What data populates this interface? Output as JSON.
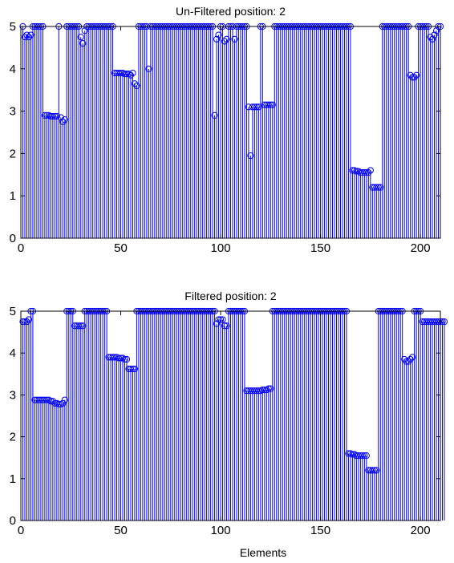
{
  "figure": {
    "xlabel": "Elements",
    "stem_color": "#0000ff",
    "axes_color": "#000000"
  },
  "chart_data": [
    {
      "type": "stem",
      "title": "Un-Filtered position: 2",
      "xlabel": "",
      "ylabel": "",
      "xlim": [
        0,
        210
      ],
      "ylim": [
        0,
        5
      ],
      "xticks": [
        0,
        50,
        100,
        150,
        200
      ],
      "yticks": [
        0,
        1,
        2,
        3,
        4,
        5
      ],
      "grid": false,
      "values": [
        5,
        4.75,
        4.8,
        4.75,
        4.8,
        5,
        5,
        5,
        5,
        5,
        5,
        2.9,
        2.9,
        2.9,
        2.88,
        2.88,
        2.88,
        2.88,
        5,
        2.85,
        2.75,
        2.8,
        5,
        5,
        5,
        5,
        5,
        5,
        5,
        4.75,
        4.6,
        4.9,
        5,
        5,
        5,
        5,
        5,
        5,
        5,
        5,
        5,
        5,
        5,
        5,
        5,
        5,
        3.9,
        3.9,
        3.9,
        3.9,
        3.9,
        3.88,
        3.88,
        3.88,
        3.85,
        3.9,
        3.65,
        3.6,
        5,
        5,
        5,
        5,
        5,
        4,
        5,
        5,
        5,
        5,
        5,
        5,
        5,
        5,
        5,
        5,
        5,
        5,
        5,
        5,
        5,
        5,
        5,
        5,
        5,
        5,
        5,
        5,
        5,
        5,
        5,
        5,
        5,
        5,
        5,
        5,
        5,
        5,
        2.9,
        4.7,
        4.8,
        5,
        5,
        4.65,
        4.7,
        5,
        5,
        5,
        4.7,
        5,
        5,
        5,
        5,
        5,
        5,
        3.1,
        1.95,
        3.1,
        3.1,
        3.1,
        3.1,
        5,
        5,
        3.15,
        3.15,
        3.15,
        3.15,
        3.15,
        5,
        5,
        5,
        5,
        5,
        5,
        5,
        5,
        5,
        5,
        5,
        5,
        5,
        5,
        5,
        5,
        5,
        5,
        5,
        5,
        5,
        5,
        5,
        5,
        5,
        5,
        5,
        5,
        5,
        5,
        5,
        5,
        5,
        5,
        5,
        5,
        5,
        5,
        5,
        1.6,
        1.6,
        1.58,
        1.58,
        1.55,
        1.55,
        1.55,
        1.55,
        1.55,
        1.6,
        1.2,
        1.2,
        1.2,
        1.2,
        1.2,
        5,
        5,
        5,
        5,
        5,
        5,
        5,
        5,
        5,
        5,
        5,
        5,
        5,
        5,
        3.85,
        3.8,
        3.8,
        3.85,
        5,
        5,
        5,
        5,
        5,
        5,
        4.75,
        4.7,
        4.8,
        4.9,
        5,
        5
      ]
    },
    {
      "type": "stem",
      "title": "Filtered position: 2",
      "xlabel": "Elements",
      "ylabel": "",
      "xlim": [
        0,
        210
      ],
      "ylim": [
        0,
        5
      ],
      "xticks": [
        0,
        50,
        100,
        150,
        200
      ],
      "yticks": [
        0,
        1,
        2,
        3,
        4,
        5
      ],
      "grid": false,
      "values": [
        4.75,
        4.75,
        4.75,
        4.8,
        5,
        5,
        2.88,
        2.88,
        2.88,
        2.88,
        2.88,
        2.88,
        2.88,
        2.88,
        2.85,
        2.85,
        2.8,
        2.8,
        2.78,
        2.78,
        2.8,
        2.88,
        5,
        5,
        5,
        5,
        4.65,
        4.65,
        4.65,
        4.65,
        4.65,
        5,
        5,
        5,
        5,
        5,
        5,
        5,
        5,
        5,
        5,
        5,
        5,
        3.9,
        3.9,
        3.9,
        3.9,
        3.9,
        3.88,
        3.88,
        3.88,
        3.85,
        3.85,
        3.62,
        3.62,
        3.62,
        3.62,
        5,
        5,
        5,
        5,
        5,
        5,
        5,
        5,
        5,
        5,
        5,
        5,
        5,
        5,
        5,
        5,
        5,
        5,
        5,
        5,
        5,
        5,
        5,
        5,
        5,
        5,
        5,
        5,
        5,
        5,
        5,
        5,
        5,
        5,
        5,
        5,
        5,
        5,
        5,
        5,
        4.7,
        4.8,
        4.8,
        4.8,
        4.65,
        4.65,
        5,
        5,
        5,
        5,
        5,
        5,
        5,
        5,
        5,
        3.1,
        3.1,
        3.1,
        3.1,
        3.1,
        3.1,
        3.1,
        3.1,
        3.12,
        3.12,
        3.12,
        3.15,
        3.15,
        5,
        5,
        5,
        5,
        5,
        5,
        5,
        5,
        5,
        5,
        5,
        5,
        5,
        5,
        5,
        5,
        5,
        5,
        5,
        5,
        5,
        5,
        5,
        5,
        5,
        5,
        5,
        5,
        5,
        5,
        5,
        5,
        5,
        5,
        5,
        5,
        5,
        5,
        1.6,
        1.6,
        1.58,
        1.58,
        1.55,
        1.55,
        1.55,
        1.55,
        1.55,
        1.55,
        1.2,
        1.2,
        1.2,
        1.2,
        1.2,
        5,
        5,
        5,
        5,
        5,
        5,
        5,
        5,
        5,
        5,
        5,
        5,
        5,
        3.85,
        3.8,
        3.8,
        3.85,
        3.9,
        5,
        5,
        5,
        5,
        4.75,
        4.75,
        4.75,
        4.75,
        4.75,
        4.75,
        4.75,
        4.75,
        4.75,
        4.75,
        4.75,
        4.75
      ]
    }
  ]
}
